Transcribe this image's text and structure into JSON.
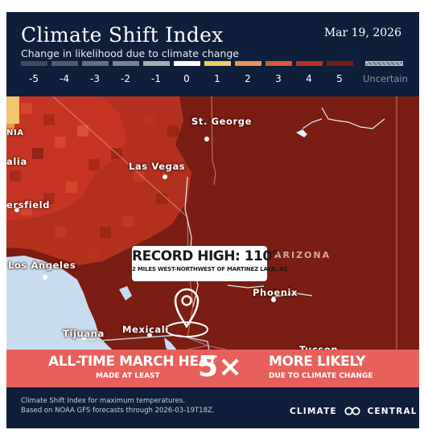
{
  "header": {
    "title": "Climate Shift Index",
    "subtitle": "Change in likelihood due to climate change",
    "date": "Mar 19, 2026"
  },
  "legend": {
    "labels": [
      "-5",
      "-4",
      "-3",
      "-2",
      "-1",
      "0",
      "1",
      "2",
      "3",
      "4",
      "5"
    ],
    "uncertain_label": "Uncertain",
    "colors": [
      "#3f4a5c",
      "#515c6d",
      "#656f7e",
      "#7b8390",
      "#a7adb6",
      "#ffffff",
      "#f2c86c",
      "#e9944f",
      "#d45a3a",
      "#b13420",
      "#7e1a10"
    ],
    "uncertain_color": "#6b7385"
  },
  "map": {
    "colors": {
      "deep": "#7a1d12",
      "mid": "#a12a1b",
      "bright": "#c63524",
      "ocean": "#c8dcf0",
      "pale": "#f3c56c"
    },
    "cities": {
      "st_george": "St. George",
      "las_vegas": "Las Vegas",
      "bakersfield": "ersfield",
      "los_angeles": "Los Angeles",
      "phoenix": "Phoenix",
      "tijuana": "Tijuana",
      "mexicali": "Mexicali",
      "tucson": "Tucson",
      "nia": "NIA",
      "alia": "alia"
    },
    "state_label": "ARIZONA",
    "marker_icon": "location-pin-icon",
    "record": {
      "title": "RECORD HIGH: 110°",
      "subtitle": "2 MILES WEST-NORTHWEST OF MARTINEZ LAKE, AZ"
    }
  },
  "banner": {
    "left_line1": "ALL-TIME MARCH HEAT",
    "left_line2": "MADE AT LEAST",
    "multiplier": "5×",
    "right_line1": "MORE LIKELY",
    "right_line2": "DUE TO CLIMATE CHANGE",
    "color": "#e8605c"
  },
  "footer": {
    "line1": "Climate Shift Index for maximum temperatures.",
    "line2": "Based on NOAA GFS forecasts through 2026-03-19T18Z.",
    "brand_left": "CLIMATE",
    "brand_right": "CENTRAL",
    "brand_icon": "infinity-logo-icon"
  }
}
